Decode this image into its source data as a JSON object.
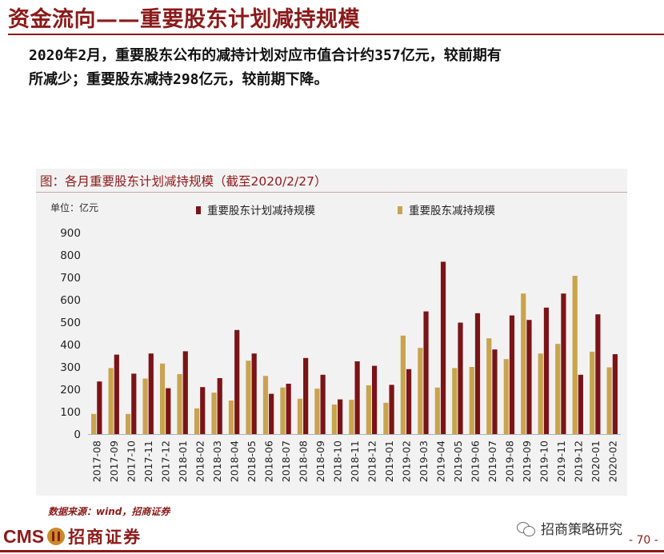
{
  "header": {
    "title": "资金流向——重要股东计划减持规模"
  },
  "summary": {
    "line1": "2020年2月，重要股东公布的减持计划对应市值合计约357亿元，较前期有",
    "line2": "所减少；重要股东减持298亿元，较前期下降。"
  },
  "chart_caption": "图：各月重要股东计划减持规模（截至2020/2/27）",
  "colors": {
    "plan": "#7b1416",
    "actual": "#c9a34e",
    "brand": "#8b1a1a"
  },
  "chart_data": {
    "type": "bar",
    "unit_label": "单位：亿元",
    "ylim": [
      0,
      900
    ],
    "yticks": [
      0,
      100,
      200,
      300,
      400,
      500,
      600,
      700,
      800,
      900
    ],
    "grid": false,
    "legend": "top",
    "categories": [
      "2017-08",
      "2017-09",
      "2017-10",
      "2017-11",
      "2017-12",
      "2018-01",
      "2018-02",
      "2018-03",
      "2018-04",
      "2018-05",
      "2018-06",
      "2018-07",
      "2018-08",
      "2018-09",
      "2018-10",
      "2018-11",
      "2018-12",
      "2019-01",
      "2019-02",
      "2019-03",
      "2019-04",
      "2019-05",
      "2019-06",
      "2019-07",
      "2019-08",
      "2019-09",
      "2019-10",
      "2019-11",
      "2019-12",
      "2020-01",
      "2020-02"
    ],
    "series": [
      {
        "name": "重要股东计划减持规模",
        "color": "#7b1416",
        "values": [
          235,
          355,
          270,
          360,
          205,
          370,
          210,
          250,
          465,
          360,
          180,
          225,
          340,
          265,
          155,
          325,
          305,
          220,
          290,
          548,
          770,
          498,
          540,
          378,
          530,
          510,
          565,
          628,
          265,
          535,
          357
        ]
      },
      {
        "name": "重要股东减持规模",
        "color": "#c9a34e",
        "values": [
          90,
          295,
          90,
          248,
          315,
          268,
          115,
          185,
          150,
          328,
          260,
          208,
          158,
          203,
          132,
          153,
          218,
          140,
          440,
          385,
          208,
          295,
          300,
          428,
          335,
          628,
          360,
          403,
          707,
          368,
          298
        ]
      }
    ]
  },
  "footer": {
    "source": "数据来源：wind，招商证券",
    "brand_latin": "CMS",
    "brand_cn": "招商证券",
    "wechat": "招商策略研究",
    "page_number": "- 70 -"
  }
}
